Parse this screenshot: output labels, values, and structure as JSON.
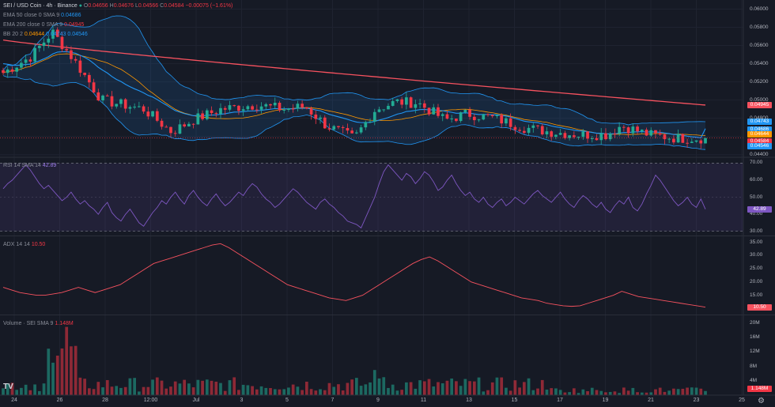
{
  "header": {
    "symbol": "SEI / USD Coin · 4h · Binance",
    "o_label": "O",
    "o": "0.04656",
    "h_label": "H",
    "h": "0.04676",
    "l_label": "L",
    "l": "0.04566",
    "c_label": "C",
    "c": "0.04584",
    "change": "−0.00075 (−1.61%)"
  },
  "indicators": {
    "ema50": {
      "label": "EMA 50 close 0 SMA 9",
      "value": "0.04686"
    },
    "ema200": {
      "label": "EMA 200 close 0 SMA 9",
      "value": "0.04945"
    },
    "bb": {
      "label": "BB 20 2",
      "v1": "0.04644",
      "v2": "0.04743",
      "v3": "0.04546"
    }
  },
  "rsi": {
    "label": "RSI 14 SMA 14",
    "value": "42.89"
  },
  "adx": {
    "label": "ADX 14 14",
    "value": "10.50"
  },
  "volume": {
    "label": "Volume · SEI SMA 9",
    "value": "1.148M"
  },
  "colors": {
    "up": "#22ab94",
    "down": "#f23645",
    "ema50": "#2196f3",
    "ema200": "#f7525f",
    "bb_basis": "#ff9800",
    "rsi": "#7e57c2",
    "adx": "#f7525f"
  },
  "chart_data": [
    {
      "type": "candlestick",
      "title": "SEI / USD Coin · 4h · Binance",
      "y_ticks": [
        "0.06000",
        "0.05800",
        "0.05600",
        "0.05400",
        "0.05200",
        "0.05000",
        "0.04800",
        "0.04600",
        "0.04400"
      ],
      "ylim": [
        0.0438,
        0.061
      ],
      "x_ticks": [
        "24",
        "26",
        "28",
        "12:00",
        "Jul",
        "3",
        "5",
        "7",
        "9",
        "11",
        "13",
        "15",
        "17",
        "19",
        "21",
        "23",
        "25"
      ],
      "price_tags": [
        "0.04945",
        "0.04743",
        "0.04686",
        "0.04644",
        "0.04584",
        "0.04546"
      ],
      "last_close": 0.04584,
      "ema50_last": 0.04686,
      "ema200_last": 0.04945,
      "bb_last": [
        0.04644,
        0.04743,
        0.04546
      ]
    },
    {
      "type": "line",
      "title": "RSI 14 SMA 14",
      "y_ticks": [
        "70.00",
        "60.00",
        "50.00",
        "40.00",
        "30.00"
      ],
      "ylim": [
        28,
        73
      ],
      "band": [
        30,
        70
      ],
      "values": [
        55,
        58,
        60,
        63,
        66,
        69,
        66,
        62,
        58,
        55,
        57,
        54,
        51,
        48,
        50,
        53,
        49,
        46,
        48,
        45,
        43,
        40,
        44,
        47,
        41,
        38,
        36,
        40,
        43,
        39,
        35,
        33,
        37,
        41,
        44,
        48,
        46,
        50,
        53,
        49,
        46,
        51,
        54,
        50,
        47,
        45,
        49,
        52,
        48,
        45,
        47,
        50,
        53,
        51,
        55,
        58,
        56,
        52,
        49,
        47,
        44,
        46,
        49,
        52,
        55,
        53,
        50,
        47,
        45,
        43,
        47,
        49,
        46,
        44,
        41,
        39,
        36,
        35,
        34,
        32,
        38,
        44,
        50,
        58,
        65,
        69,
        66,
        63,
        60,
        64,
        62,
        58,
        61,
        65,
        63,
        59,
        54,
        56,
        60,
        63,
        58,
        54,
        51,
        53,
        49,
        47,
        50,
        46,
        44,
        47,
        49,
        45,
        47,
        50,
        48,
        46,
        49,
        52,
        54,
        51,
        49,
        47,
        50,
        53,
        49,
        46,
        44,
        48,
        51,
        49,
        46,
        44,
        47,
        43,
        41,
        45,
        48,
        46,
        50,
        44,
        42,
        46,
        52,
        57,
        63,
        60,
        56,
        52,
        48,
        45,
        47,
        50,
        46,
        44,
        49,
        43
      ],
      "last": 42.89
    },
    {
      "type": "line",
      "title": "ADX 14 14",
      "y_ticks": [
        "35.00",
        "30.00",
        "25.00",
        "20.00",
        "15.00",
        "10.50"
      ],
      "ylim": [
        8,
        37
      ],
      "values": [
        18,
        17,
        16,
        15.5,
        15,
        15,
        15.5,
        16,
        17,
        18,
        17,
        16,
        17,
        18,
        19,
        21,
        23,
        25,
        27,
        28,
        29,
        30,
        31,
        32,
        33,
        34,
        34.5,
        33,
        31,
        29,
        27,
        25,
        23,
        21,
        19,
        18,
        17,
        16,
        15,
        14,
        13.5,
        13,
        14,
        15,
        17,
        19,
        21,
        23,
        25,
        27,
        28.5,
        29.5,
        28,
        26,
        24,
        22,
        20,
        19,
        18,
        17,
        16,
        15,
        14,
        13.5,
        13,
        12,
        11.5,
        11,
        10.8,
        11,
        12,
        13,
        14,
        15,
        16.5,
        15.5,
        14.5,
        14,
        13.5,
        13,
        12.5,
        12,
        11.5,
        11,
        10.5
      ],
      "last": 10.5
    },
    {
      "type": "bar",
      "title": "Volume · SEI SMA 9",
      "y_ticks": [
        "20M",
        "16M",
        "12M",
        "8M",
        "4M",
        "1.148M"
      ],
      "ylim": [
        0,
        22
      ],
      "last": 1.148
    }
  ]
}
